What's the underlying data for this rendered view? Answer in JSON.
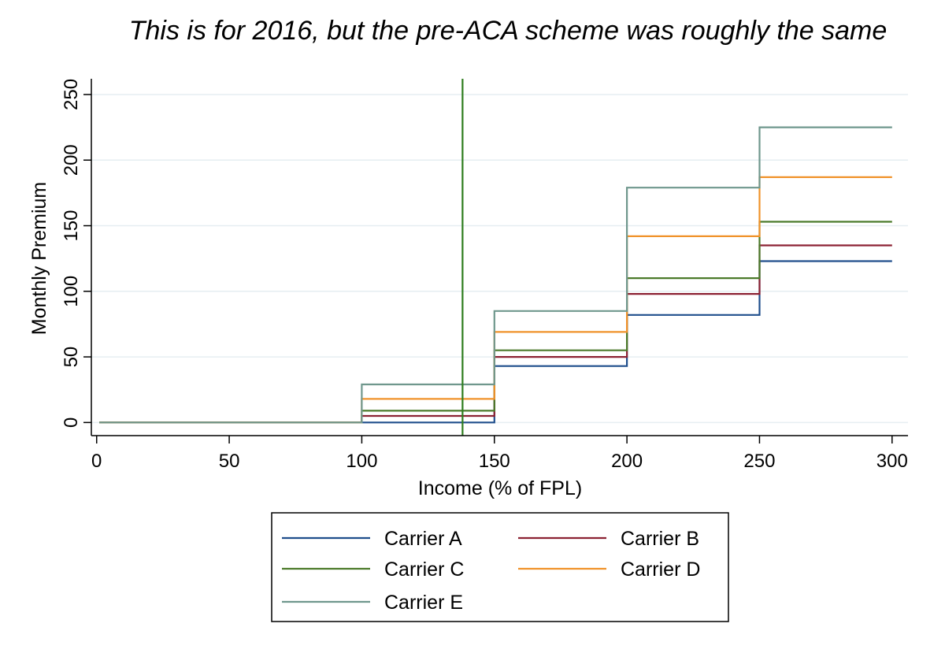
{
  "caption": "This is for 2016, but the pre-ACA scheme was roughly the same",
  "chart_data": {
    "type": "line",
    "title": "",
    "xlabel": "Income (% of FPL)",
    "ylabel": "Monthly Premium",
    "xlim": [
      -2,
      306
    ],
    "ylim": [
      -10,
      262
    ],
    "xticks": [
      0,
      50,
      100,
      150,
      200,
      250,
      300
    ],
    "yticks": [
      0,
      50,
      100,
      150,
      200,
      250
    ],
    "grid": "horizontal",
    "vline": {
      "x": 138,
      "color": "#2e7d1e"
    },
    "legend": {
      "position": "bottom",
      "columns": 2
    },
    "series": [
      {
        "name": "Carrier A",
        "color": "#1f4e8c",
        "x": [
          1,
          100,
          100,
          150,
          150,
          200,
          200,
          250,
          250,
          300
        ],
        "y": [
          0,
          0,
          0,
          0,
          43,
          43,
          82,
          82,
          123,
          123
        ]
      },
      {
        "name": "Carrier B",
        "color": "#8c2233",
        "x": [
          1,
          100,
          100,
          150,
          150,
          200,
          200,
          250,
          250,
          300
        ],
        "y": [
          0,
          0,
          5,
          5,
          50,
          50,
          98,
          98,
          135,
          135
        ]
      },
      {
        "name": "Carrier C",
        "color": "#4b7a2a",
        "x": [
          1,
          100,
          100,
          150,
          150,
          200,
          200,
          250,
          250,
          300
        ],
        "y": [
          0,
          0,
          9,
          9,
          55,
          55,
          110,
          110,
          153,
          153
        ]
      },
      {
        "name": "Carrier D",
        "color": "#f0922a",
        "x": [
          1,
          100,
          100,
          150,
          150,
          200,
          200,
          250,
          250,
          300
        ],
        "y": [
          0,
          0,
          18,
          18,
          69,
          69,
          142,
          142,
          187,
          187
        ]
      },
      {
        "name": "Carrier E",
        "color": "#6f978d",
        "x": [
          1,
          100,
          100,
          150,
          150,
          200,
          200,
          250,
          250,
          300
        ],
        "y": [
          0,
          0,
          29,
          29,
          85,
          85,
          179,
          179,
          225,
          225
        ]
      }
    ]
  }
}
